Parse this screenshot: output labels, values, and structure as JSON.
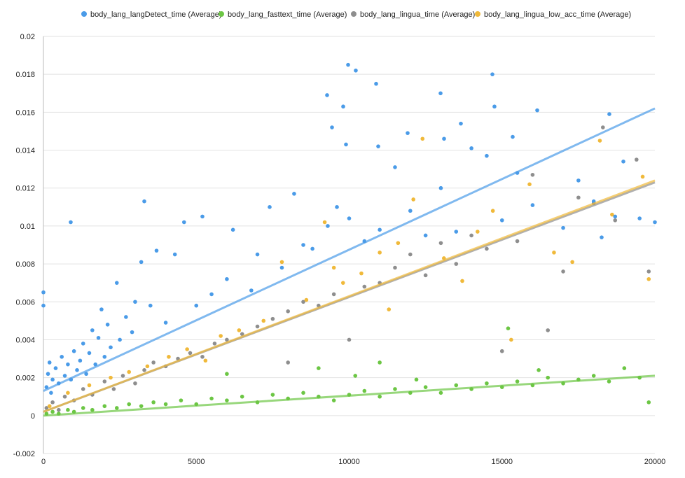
{
  "chart_data": {
    "type": "scatter",
    "title": "",
    "xlabel": "",
    "ylabel": "",
    "xlim": [
      0,
      20000
    ],
    "ylim": [
      -0.002,
      0.02
    ],
    "x_ticks": [
      0,
      5000,
      10000,
      15000,
      20000
    ],
    "y_ticks": [
      -0.002,
      0,
      0.002,
      0.004,
      0.006,
      0.008,
      0.01,
      0.012,
      0.014,
      0.016,
      0.018,
      0.02
    ],
    "x_tick_labels": [
      "0",
      "5000",
      "10000",
      "15000",
      "20000"
    ],
    "y_tick_labels": [
      "-0.002",
      "0",
      "0.002",
      "0.004",
      "0.006",
      "0.008",
      "0.01",
      "0.012",
      "0.014",
      "0.016",
      "0.018",
      "0.02"
    ],
    "grid": true,
    "legend_position": "top-center",
    "series": [
      {
        "name": "body_lang_langDetect_time (Average)",
        "color": "#4a9be8",
        "trendline": {
          "x": [
            0,
            20000
          ],
          "y": [
            0.0013,
            0.0162
          ]
        },
        "points": [
          [
            100,
            0.0015
          ],
          [
            150,
            0.0022
          ],
          [
            200,
            0.0028
          ],
          [
            250,
            0.0012
          ],
          [
            300,
            0.0019
          ],
          [
            400,
            0.0025
          ],
          [
            500,
            0.0017
          ],
          [
            600,
            0.0031
          ],
          [
            700,
            0.0021
          ],
          [
            800,
            0.0027
          ],
          [
            900,
            0.0019
          ],
          [
            1000,
            0.0034
          ],
          [
            1100,
            0.0024
          ],
          [
            1200,
            0.0029
          ],
          [
            1300,
            0.0038
          ],
          [
            1400,
            0.0022
          ],
          [
            1500,
            0.0033
          ],
          [
            1600,
            0.0045
          ],
          [
            1700,
            0.0027
          ],
          [
            1800,
            0.0041
          ],
          [
            1900,
            0.0056
          ],
          [
            2000,
            0.0031
          ],
          [
            2100,
            0.0048
          ],
          [
            2200,
            0.0036
          ],
          [
            2400,
            0.007
          ],
          [
            2500,
            0.004
          ],
          [
            2700,
            0.0052
          ],
          [
            2900,
            0.0044
          ],
          [
            3000,
            0.006
          ],
          [
            3200,
            0.0081
          ],
          [
            3500,
            0.0058
          ],
          [
            3700,
            0.0087
          ],
          [
            4000,
            0.0049
          ],
          [
            4300,
            0.0085
          ],
          [
            4600,
            0.0102
          ],
          [
            5000,
            0.0058
          ],
          [
            5200,
            0.0105
          ],
          [
            5500,
            0.0064
          ],
          [
            6000,
            0.0072
          ],
          [
            6200,
            0.0098
          ],
          [
            6800,
            0.0066
          ],
          [
            7000,
            0.0085
          ],
          [
            7400,
            0.011
          ],
          [
            7800,
            0.0078
          ],
          [
            8200,
            0.0117
          ],
          [
            8500,
            0.009
          ],
          [
            8800,
            0.0088
          ],
          [
            9300,
            0.01
          ],
          [
            9600,
            0.011
          ],
          [
            10000,
            0.0104
          ],
          [
            10500,
            0.0092
          ],
          [
            11000,
            0.0098
          ],
          [
            11500,
            0.0131
          ],
          [
            12000,
            0.0108
          ],
          [
            12500,
            0.0095
          ],
          [
            13000,
            0.012
          ],
          [
            13500,
            0.0097
          ],
          [
            14000,
            0.0141
          ],
          [
            14500,
            0.0137
          ],
          [
            15000,
            0.0103
          ],
          [
            15500,
            0.0128
          ],
          [
            16000,
            0.0111
          ],
          [
            17000,
            0.0099
          ],
          [
            17500,
            0.0124
          ],
          [
            18000,
            0.0113
          ],
          [
            18700,
            0.0105
          ],
          [
            19500,
            0.0104
          ],
          [
            9966,
            0.0185
          ],
          [
            10217,
            0.0182
          ],
          [
            10882,
            0.0175
          ],
          [
            14685,
            0.018
          ],
          [
            9278,
            0.0169
          ],
          [
            9805,
            0.0163
          ],
          [
            12990,
            0.017
          ],
          [
            14753,
            0.0163
          ],
          [
            16151,
            0.0161
          ],
          [
            18510,
            0.0159
          ],
          [
            893,
            0.0102
          ],
          [
            3299,
            0.0113
          ],
          [
            20000,
            0.0102
          ],
          [
            9439,
            0.0152
          ],
          [
            13654,
            0.0154
          ],
          [
            9897,
            0.0143
          ],
          [
            10951,
            0.0142
          ],
          [
            11913,
            0.0149
          ],
          [
            13104,
            0.0146
          ],
          [
            15349,
            0.0147
          ],
          [
            18969,
            0.0134
          ],
          [
            18259,
            0.0094
          ],
          [
            0,
            0.0065
          ],
          [
            0,
            0.0058
          ]
        ]
      },
      {
        "name": "body_lang_fasttext_time (Average)",
        "color": "#6cc644",
        "trendline": {
          "x": [
            0,
            20000
          ],
          "y": [
            0.0,
            0.0021
          ]
        },
        "points": [
          [
            100,
            0.0001
          ],
          [
            300,
            0.0002
          ],
          [
            500,
            0.0001
          ],
          [
            800,
            0.0003
          ],
          [
            1000,
            0.0002
          ],
          [
            1300,
            0.0004
          ],
          [
            1600,
            0.0003
          ],
          [
            2000,
            0.0005
          ],
          [
            2400,
            0.0004
          ],
          [
            2800,
            0.0006
          ],
          [
            3200,
            0.0005
          ],
          [
            3600,
            0.0007
          ],
          [
            4000,
            0.0006
          ],
          [
            4500,
            0.0008
          ],
          [
            5000,
            0.0006
          ],
          [
            5500,
            0.0009
          ],
          [
            6000,
            0.0008
          ],
          [
            6500,
            0.001
          ],
          [
            7000,
            0.0007
          ],
          [
            7500,
            0.0011
          ],
          [
            8000,
            0.0009
          ],
          [
            8500,
            0.0012
          ],
          [
            9000,
            0.001
          ],
          [
            9500,
            0.0008
          ],
          [
            10000,
            0.0011
          ],
          [
            10500,
            0.0013
          ],
          [
            11000,
            0.001
          ],
          [
            11500,
            0.0014
          ],
          [
            12000,
            0.0012
          ],
          [
            12500,
            0.0015
          ],
          [
            13000,
            0.0012
          ],
          [
            13500,
            0.0016
          ],
          [
            14000,
            0.0014
          ],
          [
            14500,
            0.0017
          ],
          [
            15000,
            0.0015
          ],
          [
            15500,
            0.0018
          ],
          [
            16000,
            0.0016
          ],
          [
            16500,
            0.002
          ],
          [
            17000,
            0.0017
          ],
          [
            17500,
            0.0019
          ],
          [
            18000,
            0.0021
          ],
          [
            18500,
            0.0018
          ],
          [
            19000,
            0.0025
          ],
          [
            19500,
            0.002
          ],
          [
            19800,
            0.0007
          ],
          [
            15200,
            0.0046
          ],
          [
            11000,
            0.0028
          ],
          [
            9000,
            0.0025
          ],
          [
            6000,
            0.0022
          ],
          [
            16200,
            0.0024
          ],
          [
            10200,
            0.0021
          ],
          [
            12200,
            0.0019
          ]
        ]
      },
      {
        "name": "body_lang_lingua_time (Average)",
        "color": "#8e8e8e",
        "trendline": {
          "x": [
            0,
            20000
          ],
          "y": [
            0.0002,
            0.0123
          ]
        },
        "points": [
          [
            100,
            0.0004
          ],
          [
            300,
            0.0007
          ],
          [
            500,
            0.0003
          ],
          [
            700,
            0.001
          ],
          [
            1000,
            0.0008
          ],
          [
            1300,
            0.0014
          ],
          [
            1600,
            0.0011
          ],
          [
            2000,
            0.0018
          ],
          [
            2300,
            0.0014
          ],
          [
            2600,
            0.0021
          ],
          [
            3000,
            0.0017
          ],
          [
            3300,
            0.0024
          ],
          [
            3600,
            0.0028
          ],
          [
            4000,
            0.0026
          ],
          [
            4400,
            0.003
          ],
          [
            4800,
            0.0033
          ],
          [
            5200,
            0.0031
          ],
          [
            5600,
            0.0038
          ],
          [
            6000,
            0.004
          ],
          [
            6500,
            0.0043
          ],
          [
            7000,
            0.0047
          ],
          [
            7500,
            0.0051
          ],
          [
            8000,
            0.0055
          ],
          [
            8000,
            0.0028
          ],
          [
            8500,
            0.006
          ],
          [
            9000,
            0.0058
          ],
          [
            9500,
            0.0064
          ],
          [
            10000,
            0.004
          ],
          [
            10500,
            0.0068
          ],
          [
            11000,
            0.007
          ],
          [
            11500,
            0.0078
          ],
          [
            12000,
            0.0085
          ],
          [
            12500,
            0.0074
          ],
          [
            13000,
            0.0091
          ],
          [
            13500,
            0.008
          ],
          [
            14000,
            0.0095
          ],
          [
            14500,
            0.0088
          ],
          [
            15000,
            0.0034
          ],
          [
            15500,
            0.0092
          ],
          [
            16000,
            0.0127
          ],
          [
            16500,
            0.0045
          ],
          [
            17000,
            0.0076
          ],
          [
            17500,
            0.0115
          ],
          [
            18000,
            0.0112
          ],
          [
            18300,
            0.0152
          ],
          [
            18700,
            0.0103
          ],
          [
            19400,
            0.0135
          ],
          [
            19800,
            0.0076
          ]
        ]
      },
      {
        "name": "body_lang_lingua_low_acc_time (Average)",
        "color": "#f0b93a",
        "trendline": {
          "x": [
            0,
            20000
          ],
          "y": [
            0.0002,
            0.0124
          ]
        },
        "points": [
          [
            200,
            0.0005
          ],
          [
            800,
            0.0012
          ],
          [
            1500,
            0.0016
          ],
          [
            2200,
            0.002
          ],
          [
            2800,
            0.0023
          ],
          [
            3400,
            0.0026
          ],
          [
            4100,
            0.0031
          ],
          [
            4700,
            0.0035
          ],
          [
            5300,
            0.0029
          ],
          [
            5800,
            0.0042
          ],
          [
            6400,
            0.0045
          ],
          [
            7200,
            0.005
          ],
          [
            7800,
            0.0081
          ],
          [
            8600,
            0.0061
          ],
          [
            9200,
            0.0102
          ],
          [
            9800,
            0.007
          ],
          [
            10400,
            0.0075
          ],
          [
            11000,
            0.0086
          ],
          [
            11600,
            0.0091
          ],
          [
            12100,
            0.0114
          ],
          [
            12400,
            0.0146
          ],
          [
            13100,
            0.0083
          ],
          [
            13700,
            0.0071
          ],
          [
            14200,
            0.0097
          ],
          [
            14700,
            0.0108
          ],
          [
            15300,
            0.004
          ],
          [
            15900,
            0.0122
          ],
          [
            16700,
            0.0086
          ],
          [
            17300,
            0.0081
          ],
          [
            18200,
            0.0145
          ],
          [
            18600,
            0.0106
          ],
          [
            19600,
            0.0126
          ],
          [
            19800,
            0.0072
          ],
          [
            11300,
            0.0056
          ],
          [
            9500,
            0.0078
          ]
        ]
      }
    ]
  }
}
